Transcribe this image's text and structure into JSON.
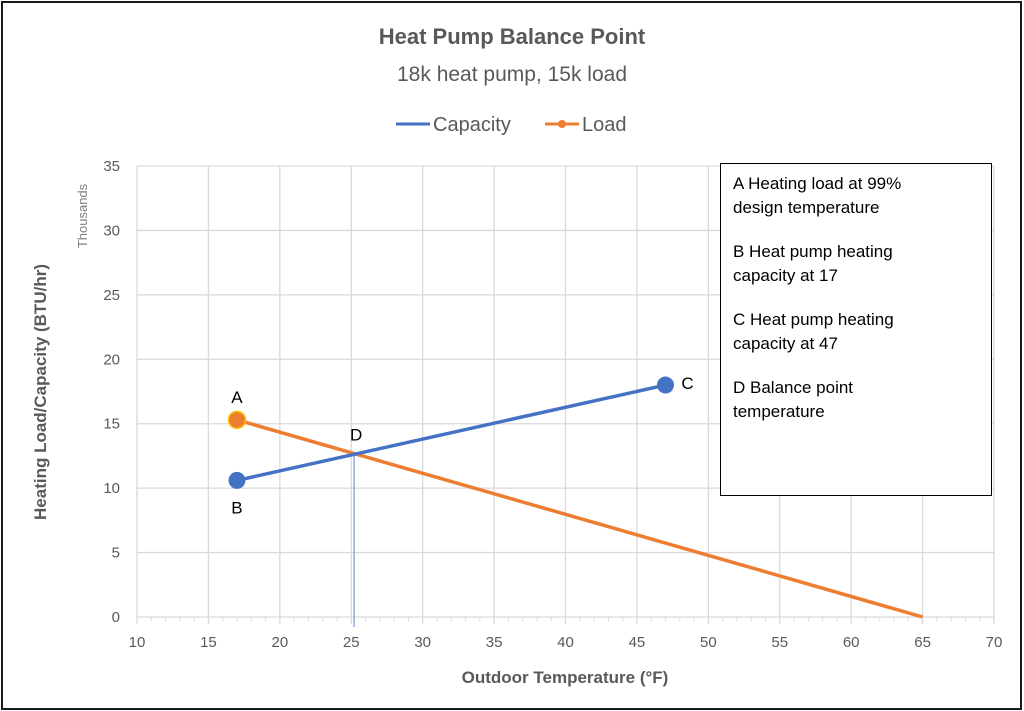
{
  "chart_data": {
    "type": "line",
    "title": "Heat Pump Balance Point",
    "subtitle": "18k heat pump, 15k load",
    "xlabel": "Outdoor Temperature (°F)",
    "ylabel": "Heating Load/Capacity (BTU/hr)",
    "y_units_label": "Thousands",
    "xlim": [
      10,
      70
    ],
    "ylim": [
      0,
      35
    ],
    "x_ticks": [
      "10",
      "15",
      "20",
      "25",
      "30",
      "35",
      "40",
      "45",
      "50",
      "55",
      "60",
      "65",
      "70"
    ],
    "y_ticks": [
      "0",
      "5",
      "10",
      "15",
      "20",
      "25",
      "30",
      "35"
    ],
    "grid": true,
    "legend_position": "top",
    "series": [
      {
        "name": "Capacity",
        "color": "#4472c4",
        "x": [
          17,
          47
        ],
        "y": [
          10.6,
          18.0
        ]
      },
      {
        "name": "Load",
        "color": "#ed7d31",
        "x": [
          17,
          65
        ],
        "y": [
          15.3,
          0
        ]
      }
    ],
    "balance_line": {
      "x": 25.2,
      "y": 12.6,
      "color": "#8faadc"
    },
    "annotations": [
      {
        "label": "A",
        "x": 17,
        "y": 15.3
      },
      {
        "label": "B",
        "x": 17,
        "y": 10.6
      },
      {
        "label": "C",
        "x": 47,
        "y": 18.0
      },
      {
        "label": "D",
        "x": 25.2,
        "y": 12.6
      }
    ]
  },
  "notes": [
    {
      "line1": "A  Heating load at 99%",
      "line2": "design temperature"
    },
    {
      "line1": "B  Heat pump heating",
      "line2": "capacity at 17"
    },
    {
      "line1": "C  Heat pump heating",
      "line2": "capacity at 47"
    },
    {
      "line1": "D  Balance point",
      "line2": "temperature"
    }
  ]
}
